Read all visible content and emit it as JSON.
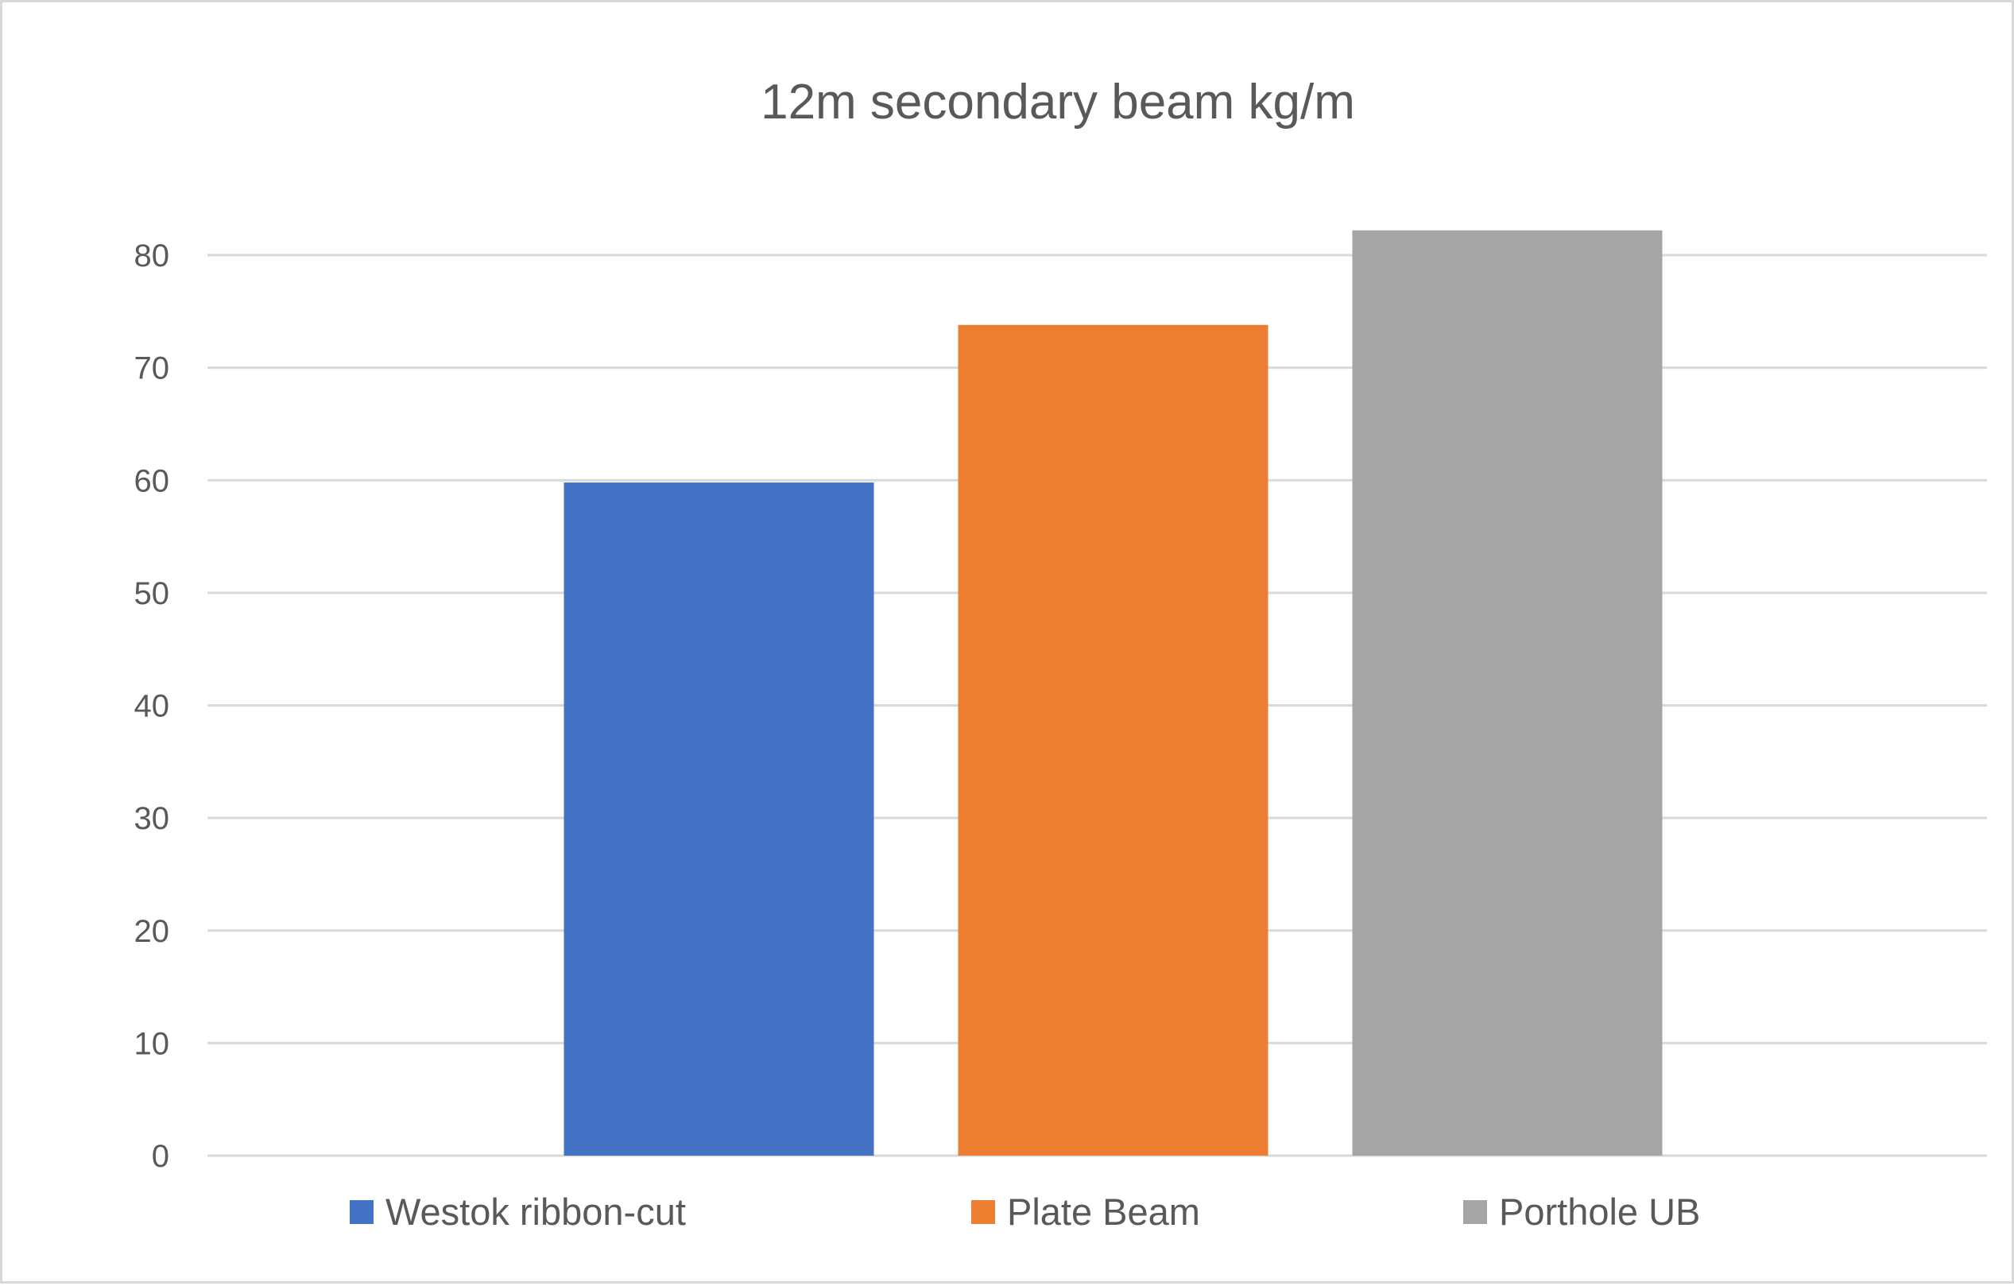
{
  "chart_data": {
    "type": "bar",
    "title": "12m secondary beam kg/m",
    "categories": [
      ""
    ],
    "series": [
      {
        "name": "Westok ribbon-cut",
        "values": [
          59.8
        ],
        "color": "#4472c4"
      },
      {
        "name": "Plate Beam",
        "values": [
          73.8
        ],
        "color": "#ed7d31"
      },
      {
        "name": "Porthole UB",
        "values": [
          82.2
        ],
        "color": "#a5a5a5"
      }
    ],
    "ylim": [
      0,
      80
    ],
    "yticks": [
      0,
      10,
      20,
      30,
      40,
      50,
      60,
      70,
      80
    ],
    "grid": true,
    "legend": "bottom"
  }
}
